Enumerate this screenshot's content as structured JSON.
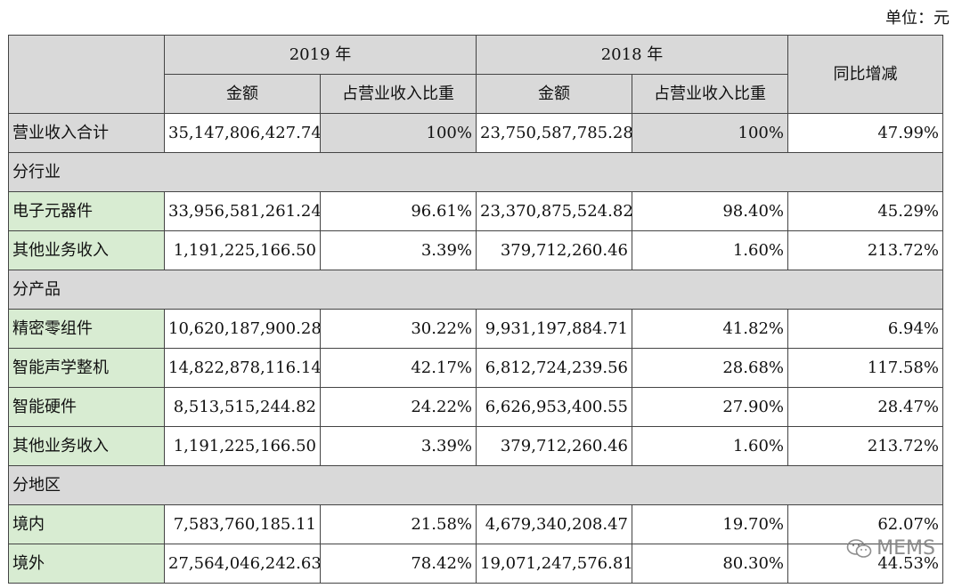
{
  "unit_label": "单位：元",
  "header": {
    "year_2019": "2019 年",
    "year_2018": "2018 年",
    "yoy": "同比增减",
    "amount": "金额",
    "share": "占营业收入比重"
  },
  "rows": [
    {
      "type": "data",
      "label": "营业收入合计",
      "amount_2019": "35,147,806,427.74",
      "share_2019": "100%",
      "amount_2018": "23,750,587,785.28",
      "share_2018": "100%",
      "yoy": "47.99%"
    },
    {
      "type": "section",
      "label": "分行业"
    },
    {
      "type": "data",
      "label": "电子元器件",
      "amount_2019": "33,956,581,261.24",
      "share_2019": "96.61%",
      "amount_2018": "23,370,875,524.82",
      "share_2018": "98.40%",
      "yoy": "45.29%"
    },
    {
      "type": "data",
      "label": "其他业务收入",
      "amount_2019": "1,191,225,166.50",
      "share_2019": "3.39%",
      "amount_2018": "379,712,260.46",
      "share_2018": "1.60%",
      "yoy": "213.72%"
    },
    {
      "type": "section",
      "label": "分产品"
    },
    {
      "type": "data",
      "label": "精密零组件",
      "amount_2019": "10,620,187,900.28",
      "share_2019": "30.22%",
      "amount_2018": "9,931,197,884.71",
      "share_2018": "41.82%",
      "yoy": "6.94%"
    },
    {
      "type": "data",
      "label": "智能声学整机",
      "amount_2019": "14,822,878,116.14",
      "share_2019": "42.17%",
      "amount_2018": "6,812,724,239.56",
      "share_2018": "28.68%",
      "yoy": "117.58%"
    },
    {
      "type": "data",
      "label": "智能硬件",
      "amount_2019": "8,513,515,244.82",
      "share_2019": "24.22%",
      "amount_2018": "6,626,953,400.55",
      "share_2018": "27.90%",
      "yoy": "28.47%"
    },
    {
      "type": "data",
      "label": "其他业务收入",
      "amount_2019": "1,191,225,166.50",
      "share_2019": "3.39%",
      "amount_2018": "379,712,260.46",
      "share_2018": "1.60%",
      "yoy": "213.72%"
    },
    {
      "type": "section",
      "label": "分地区"
    },
    {
      "type": "data",
      "label": "境内",
      "amount_2019": "7,583,760,185.11",
      "share_2019": "21.58%",
      "amount_2018": "4,679,340,208.47",
      "share_2018": "19.70%",
      "yoy": "62.07%"
    },
    {
      "type": "data",
      "label": "境外",
      "amount_2019": "27,564,046,242.63",
      "share_2019": "78.42%",
      "amount_2018": "19,071,247,576.81",
      "share_2018": "80.30%",
      "yoy": "44.53%"
    }
  ],
  "watermark": {
    "icon": "wechat-icon",
    "text": "MEMS"
  },
  "colors": {
    "header_gray": "#d9d9d9",
    "label_green": "#d8ecd2",
    "border": "#444444"
  }
}
